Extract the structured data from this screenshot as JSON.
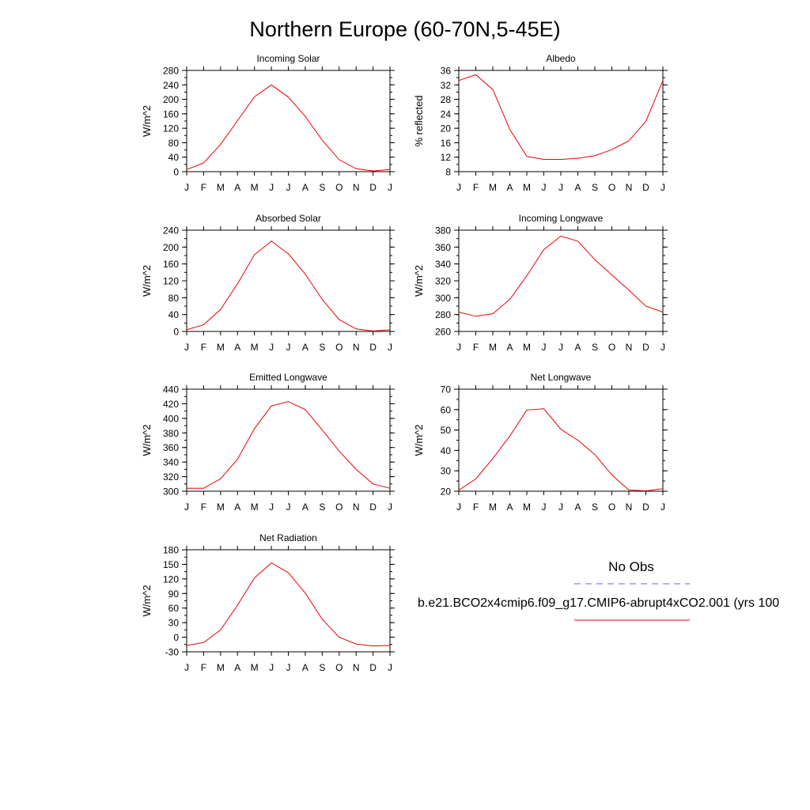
{
  "figure": {
    "title": "Northern Europe (60-70N,5-45E)"
  },
  "month_labels": [
    "J",
    "F",
    "M",
    "A",
    "M",
    "J",
    "J",
    "A",
    "S",
    "O",
    "N",
    "D",
    "J"
  ],
  "legend": {
    "obs_label": "No Obs",
    "model_label": "b.e21.BCO2x4cmip6.f09_g17.CMIP6-abrupt4xCO2.001 (yrs 100",
    "obs_color": "#6666ee",
    "model_color": "#ee0000"
  },
  "chart_data": [
    {
      "type": "line",
      "title": "Incoming Solar",
      "ylabel": "W/m^2",
      "ylim": [
        0,
        280
      ],
      "yticks": [
        0,
        40,
        80,
        120,
        160,
        200,
        240,
        280
      ],
      "minor_step": 20,
      "x": [
        "J",
        "F",
        "M",
        "A",
        "M",
        "J",
        "J",
        "A",
        "S",
        "O",
        "N",
        "D",
        "J"
      ],
      "series": [
        {
          "color": "#ee0000",
          "values": [
            6,
            24,
            75,
            141,
            207,
            240,
            206,
            153,
            87,
            33,
            8,
            2,
            6
          ]
        }
      ]
    },
    {
      "type": "line",
      "title": "Albedo",
      "ylabel": "% reflected",
      "ylim": [
        8,
        36
      ],
      "yticks": [
        8,
        12,
        16,
        20,
        24,
        28,
        32,
        36
      ],
      "minor_step": 2,
      "x": [
        "J",
        "F",
        "M",
        "A",
        "M",
        "J",
        "J",
        "A",
        "S",
        "O",
        "N",
        "D",
        "J"
      ],
      "series": [
        {
          "color": "#ee0000",
          "values": [
            33.2,
            34.8,
            30.7,
            19.7,
            12.2,
            11.4,
            11.4,
            11.7,
            12.4,
            14.1,
            16.5,
            21.9,
            33.2
          ]
        }
      ]
    },
    {
      "type": "line",
      "title": "Absorbed Solar",
      "ylabel": "W/m^2",
      "ylim": [
        0,
        240
      ],
      "yticks": [
        0,
        40,
        80,
        120,
        160,
        200,
        240
      ],
      "minor_step": 20,
      "x": [
        "J",
        "F",
        "M",
        "A",
        "M",
        "J",
        "J",
        "A",
        "S",
        "O",
        "N",
        "D",
        "J"
      ],
      "series": [
        {
          "color": "#ee0000",
          "values": [
            4,
            16,
            52,
            113,
            182,
            214,
            184,
            136,
            76,
            28,
            6,
            1,
            4
          ]
        }
      ]
    },
    {
      "type": "line",
      "title": "Incoming Longwave",
      "ylabel": "W/m^2",
      "ylim": [
        260,
        380
      ],
      "yticks": [
        260,
        280,
        300,
        320,
        340,
        360,
        380
      ],
      "minor_step": 10,
      "x": [
        "J",
        "F",
        "M",
        "A",
        "M",
        "J",
        "J",
        "A",
        "S",
        "O",
        "N",
        "D",
        "J"
      ],
      "series": [
        {
          "color": "#ee0000",
          "values": [
            283,
            278,
            281,
            298,
            326,
            357,
            373,
            367,
            345,
            327,
            309,
            290,
            283
          ]
        }
      ]
    },
    {
      "type": "line",
      "title": "Emitted Longwave",
      "ylabel": "W/m^2",
      "ylim": [
        300,
        440
      ],
      "yticks": [
        300,
        320,
        340,
        360,
        380,
        400,
        420,
        440
      ],
      "minor_step": 10,
      "x": [
        "J",
        "F",
        "M",
        "A",
        "M",
        "J",
        "J",
        "A",
        "S",
        "O",
        "N",
        "D",
        "J"
      ],
      "series": [
        {
          "color": "#ee0000",
          "values": [
            304,
            304,
            317,
            344,
            386,
            417,
            423,
            412,
            384,
            355,
            330,
            310,
            304
          ]
        }
      ]
    },
    {
      "type": "line",
      "title": "Net Longwave",
      "ylabel": "W/m^2",
      "ylim": [
        20,
        70
      ],
      "yticks": [
        20,
        30,
        40,
        50,
        60,
        70
      ],
      "minor_step": 5,
      "x": [
        "J",
        "F",
        "M",
        "A",
        "M",
        "J",
        "J",
        "A",
        "S",
        "O",
        "N",
        "D",
        "J"
      ],
      "series": [
        {
          "color": "#ee0000",
          "values": [
            20.5,
            26,
            36,
            47,
            59.8,
            60.4,
            50.4,
            45,
            38,
            28,
            20.6,
            20.2,
            21.2
          ]
        }
      ]
    },
    {
      "type": "line",
      "title": "Net Radiation",
      "ylabel": "W/m^2",
      "ylim": [
        -30,
        180
      ],
      "yticks": [
        -30,
        0,
        30,
        60,
        90,
        120,
        150,
        180
      ],
      "minor_step": 15,
      "x": [
        "J",
        "F",
        "M",
        "A",
        "M",
        "J",
        "J",
        "A",
        "S",
        "O",
        "N",
        "D",
        "J"
      ],
      "series": [
        {
          "color": "#ee0000",
          "values": [
            -17,
            -11,
            15,
            66,
            122,
            153,
            133,
            91,
            37,
            0,
            -14,
            -18,
            -17
          ]
        }
      ]
    }
  ]
}
